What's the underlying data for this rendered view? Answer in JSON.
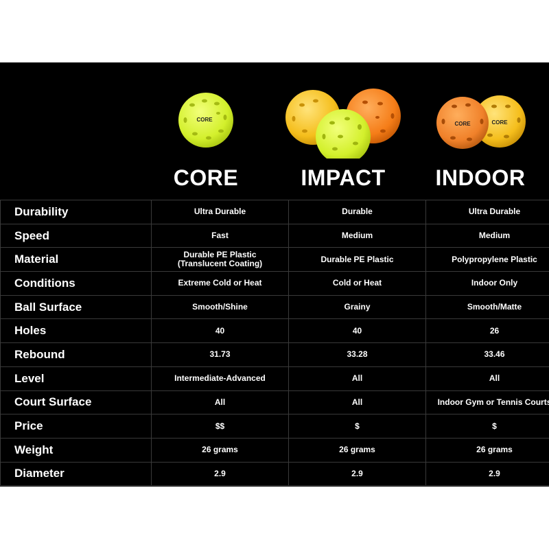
{
  "columns": [
    {
      "title": "CORE",
      "ball_text": "CORE"
    },
    {
      "title": "IMPACT"
    },
    {
      "title": "INDOOR",
      "ball_text": "CORE"
    }
  ],
  "colors": {
    "yellow_green": "#d8f53a",
    "yellow": "#f6c21e",
    "orange": "#f57f1c"
  },
  "rows": [
    {
      "label": "Durability",
      "values": [
        "Ultra Durable",
        "Durable",
        "Ultra Durable"
      ]
    },
    {
      "label": "Speed",
      "values": [
        "Fast",
        "Medium",
        "Medium"
      ]
    },
    {
      "label": "Material",
      "values": [
        "Durable PE Plastic (Translucent Coating)",
        "Durable PE Plastic",
        "Polypropylene Plastic"
      ]
    },
    {
      "label": "Conditions",
      "values": [
        "Extreme Cold or Heat",
        "Cold or Heat",
        "Indoor Only"
      ]
    },
    {
      "label": "Ball Surface",
      "values": [
        "Smooth/Shine",
        "Grainy",
        "Smooth/Matte"
      ]
    },
    {
      "label": "Holes",
      "values": [
        "40",
        "40",
        "26"
      ]
    },
    {
      "label": "Rebound",
      "values": [
        "31.73",
        "33.28",
        "33.46"
      ]
    },
    {
      "label": "Level",
      "values": [
        "Intermediate-Advanced",
        "All",
        "All"
      ]
    },
    {
      "label": "Court Surface",
      "values": [
        "All",
        "All",
        "Indoor Gym or Tennis Courts"
      ]
    },
    {
      "label": "Price",
      "values": [
        "$$",
        "$",
        "$"
      ]
    },
    {
      "label": "Weight",
      "values": [
        "26 grams",
        "26 grams",
        "26 grams"
      ]
    },
    {
      "label": "Diameter",
      "values": [
        "2.9",
        "2.9",
        "2.9"
      ]
    }
  ]
}
